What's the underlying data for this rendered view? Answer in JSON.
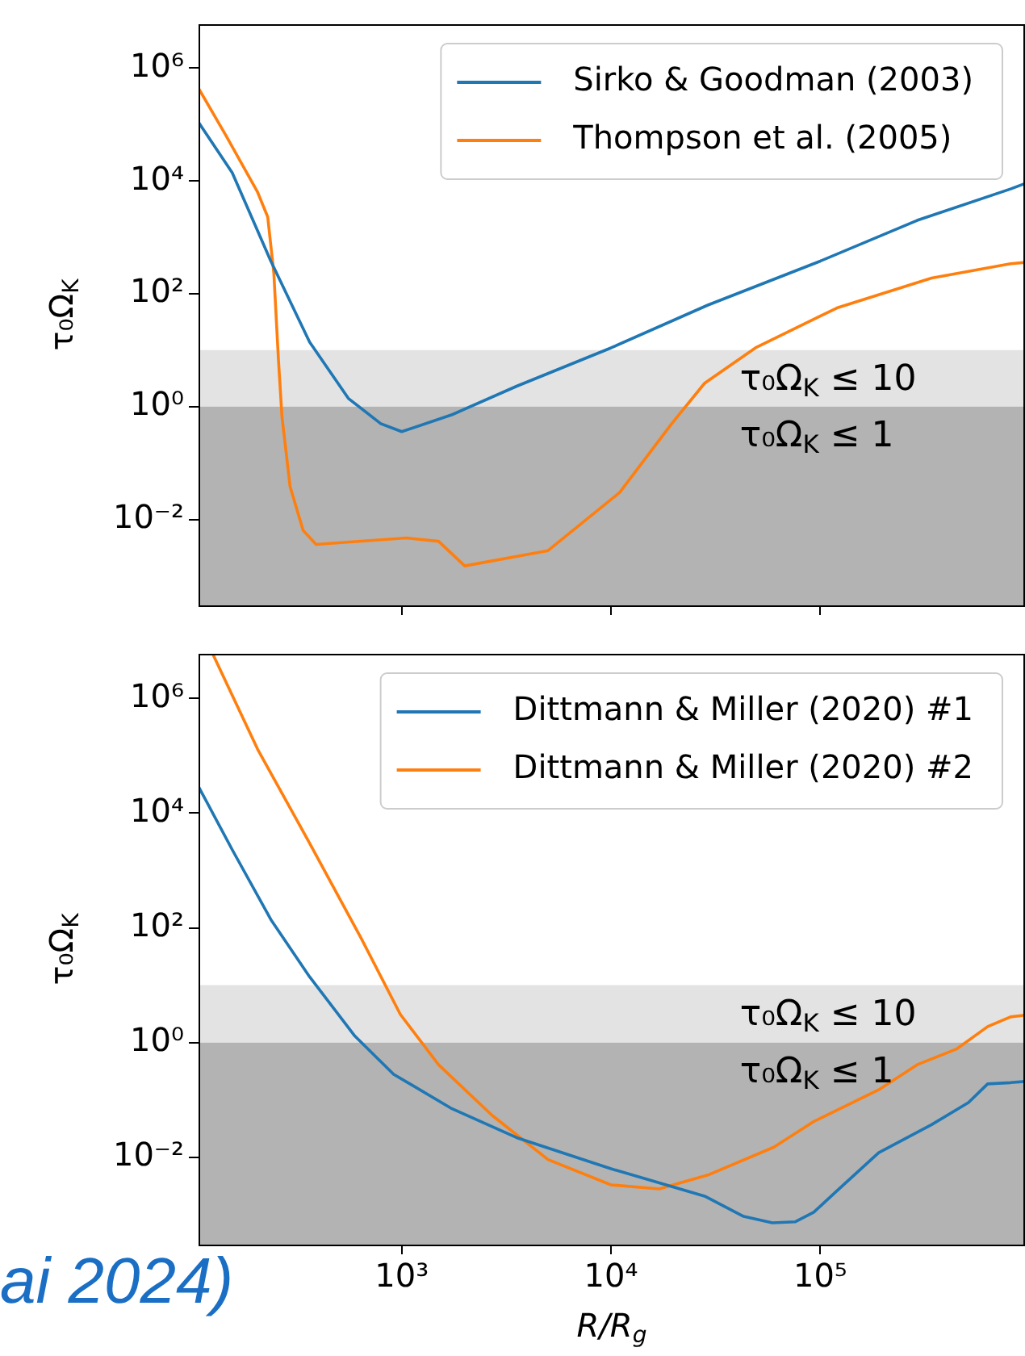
{
  "chart_data": [
    {
      "type": "line",
      "ylabel": "τ₀Ω$_{K}$",
      "xlim": [
        107,
        950000
      ],
      "ylim": [
        0.0003,
        6000000
      ],
      "log": "xy",
      "legend": "top right",
      "tick_labels": "y",
      "xticks": [
        {
          "value": 1000,
          "label": null
        },
        {
          "value": 10000,
          "label": null
        },
        {
          "value": 100000,
          "label": null
        }
      ],
      "yticks": [
        {
          "value": 0.01,
          "label": "10⁻²"
        },
        {
          "value": 1,
          "label": "10⁰"
        },
        {
          "value": 100,
          "label": "10²"
        },
        {
          "value": 10000,
          "label": "10⁴"
        },
        {
          "value": 1000000,
          "label": "10⁶"
        }
      ],
      "bands": [
        {
          "axis": "y",
          "from": 1,
          "to": 10,
          "label": "τ₀Ω$_{K}$ ≤ 10",
          "color": "#e3e3e3"
        },
        {
          "axis": "y",
          "from": 0.0003,
          "to": 1,
          "label": "τ₀Ω$_{K}$ ≤ 1",
          "color": "#b3b3b3"
        }
      ],
      "series": [
        {
          "name": "Sirko & Goodman (2003)",
          "color": "#1f77b4",
          "x": [
            107,
            155,
            237,
            363,
            556,
            794,
            1000,
            1740,
            3540,
            10000,
            29000,
            100000,
            290000,
            810000,
            950000
          ],
          "values": [
            110000,
            14000,
            380,
            14,
            1.4,
            0.5,
            0.36,
            0.72,
            2.3,
            11,
            63,
            380,
            2000,
            7200,
            9000
          ]
        },
        {
          "name": "Thompson et al. (2005)",
          "color": "#ff7f0e",
          "x": [
            107,
            145,
            205,
            229,
            245,
            258,
            268,
            293,
            338,
            390,
            1050,
            1500,
            2000,
            5000,
            11000,
            19500,
            28000,
            49000,
            120000,
            340000,
            810000,
            950000
          ],
          "values": [
            440000,
            63000,
            6300,
            2300,
            230,
            6.3,
            0.65,
            0.038,
            0.0064,
            0.0036,
            0.0047,
            0.0041,
            0.0015,
            0.0028,
            0.03,
            0.5,
            2.6,
            11,
            56,
            190,
            340,
            360
          ]
        }
      ]
    },
    {
      "type": "line",
      "xlabel": "R/R$_{g}$",
      "ylabel": "τ₀Ω$_{K}$",
      "xlim": [
        107,
        950000
      ],
      "ylim": [
        0.0003,
        6000000
      ],
      "log": "xy",
      "legend": "top right",
      "xticks": [
        {
          "value": 1000,
          "label": "10³"
        },
        {
          "value": 10000,
          "label": "10⁴"
        },
        {
          "value": 100000,
          "label": "10⁵"
        }
      ],
      "yticks": [
        {
          "value": 0.01,
          "label": "10⁻²"
        },
        {
          "value": 1,
          "label": "10⁰"
        },
        {
          "value": 100,
          "label": "10²"
        },
        {
          "value": 10000,
          "label": "10⁴"
        },
        {
          "value": 1000000,
          "label": "10⁶"
        }
      ],
      "bands": [
        {
          "axis": "y",
          "from": 1,
          "to": 10,
          "label": "τ₀Ω$_{K}$ ≤ 10",
          "color": "#e3e3e3"
        },
        {
          "axis": "y",
          "from": 0.0003,
          "to": 1,
          "label": "τ₀Ω$_{K}$ ≤ 1",
          "color": "#b3b3b3"
        }
      ],
      "annotations": [
        "ai 2024)"
      ],
      "series": [
        {
          "name": "Dittmann & Miller (2020) #1",
          "color": "#1f77b4",
          "x": [
            107,
            155,
            237,
            363,
            597,
            915,
            1740,
            3540,
            10000,
            28000,
            43000,
            59000,
            76000,
            93000,
            120000,
            190000,
            340000,
            510000,
            630000,
            810000,
            950000
          ],
          "values": [
            29000,
            2300,
            140,
            14,
            1.3,
            0.28,
            0.07,
            0.022,
            0.0063,
            0.0021,
            0.00093,
            0.00072,
            0.00075,
            0.0011,
            0.0026,
            0.012,
            0.037,
            0.09,
            0.19,
            0.2,
            0.21
          ]
        },
        {
          "name": "Dittmann & Miller (2020) #2",
          "color": "#ff7f0e",
          "x": [
            125,
            205,
            363,
            640,
            985,
            1500,
            2700,
            5000,
            10000,
            17000,
            29000,
            60000,
            93000,
            190000,
            290000,
            450000,
            630000,
            810000,
            950000
          ],
          "values": [
            6000000,
            130000,
            3000,
            66,
            3.1,
            0.41,
            0.054,
            0.0091,
            0.0033,
            0.0028,
            0.0049,
            0.015,
            0.042,
            0.15,
            0.41,
            0.78,
            1.9,
            2.8,
            3
          ]
        }
      ]
    }
  ]
}
